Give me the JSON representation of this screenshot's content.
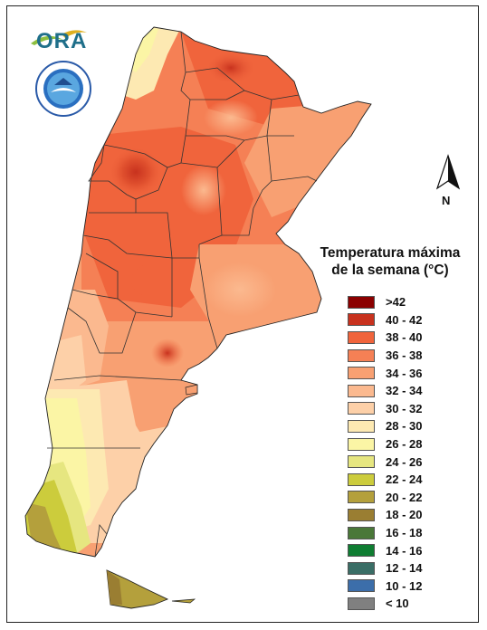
{
  "header": {
    "logo_text": "ORA",
    "seal_name": "servicio-meteorologico-nacional-seal"
  },
  "north_arrow": {
    "label": "N"
  },
  "legend": {
    "title_line1": "Temperatura máxima",
    "title_line2": "de la semana (°C)",
    "items": [
      {
        "label": ">42",
        "color": "#8b0000"
      },
      {
        "label": "40 - 42",
        "color": "#c8321e"
      },
      {
        "label": "38 - 40",
        "color": "#f0643c"
      },
      {
        "label": "36 - 38",
        "color": "#f58055"
      },
      {
        "label": "34 - 36",
        "color": "#f8a072"
      },
      {
        "label": "32 - 34",
        "color": "#fbb98f"
      },
      {
        "label": "30 - 32",
        "color": "#fdd0a8"
      },
      {
        "label": "28 - 30",
        "color": "#fde9b2"
      },
      {
        "label": "26 - 28",
        "color": "#fbf5a5"
      },
      {
        "label": "24 - 26",
        "color": "#e6e680"
      },
      {
        "label": "22 - 24",
        "color": "#cccc3c"
      },
      {
        "label": "20 - 22",
        "color": "#b4a03c"
      },
      {
        "label": "18 - 20",
        "color": "#9a7e32"
      },
      {
        "label": "16 - 18",
        "color": "#4a7838"
      },
      {
        "label": "14 - 16",
        "color": "#0f7d32"
      },
      {
        "label": "12 - 14",
        "color": "#3a6e66"
      },
      {
        "label": "10 - 12",
        "color": "#3c6eaa"
      },
      {
        "label": "< 10",
        "color": "#808080"
      }
    ]
  },
  "map": {
    "region": "Argentina",
    "variable": "weekly maximum temperature"
  }
}
